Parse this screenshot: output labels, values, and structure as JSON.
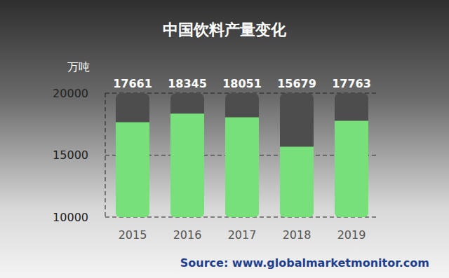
{
  "chart_data": {
    "type": "bar",
    "title": "中国饮料产量变化",
    "y_label": "万吨",
    "categories": [
      "2015",
      "2016",
      "2017",
      "2018",
      "2019"
    ],
    "values": [
      17661,
      18345,
      18051,
      15679,
      17763
    ],
    "color": "#77e07a",
    "ylim": [
      10000,
      20000
    ],
    "yticks": [
      10000,
      15000,
      20000
    ],
    "grid": true,
    "data_labels": true,
    "source": "Source: www.globalmarketmonitor.com"
  }
}
